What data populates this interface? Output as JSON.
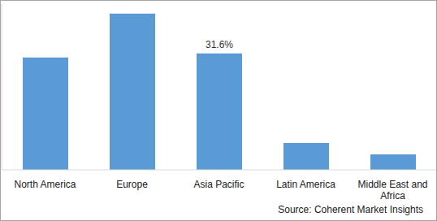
{
  "chart_data": {
    "type": "bar",
    "categories": [
      "North America",
      "Europe",
      "Asia Pacific",
      "Latin America",
      "Middle East and Africa"
    ],
    "values": [
      30.5,
      42.4,
      31.6,
      7.3,
      4.2
    ],
    "value_labels": [
      null,
      null,
      "31.6%",
      null,
      null
    ],
    "data_labels": true,
    "color": "#5b9bd5",
    "ylim": [
      0,
      45
    ],
    "tick_labels": "x",
    "grid": false,
    "source": "Source: Coherent Market Insights"
  }
}
